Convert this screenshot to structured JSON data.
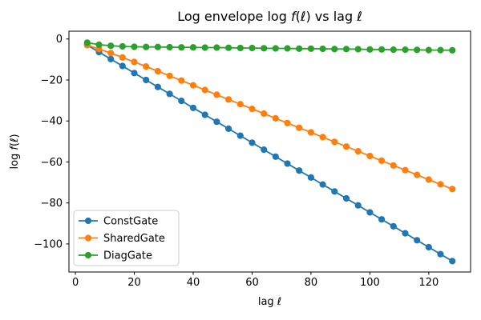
{
  "figure": {
    "background": "#ffffff"
  },
  "chart_data": {
    "type": "line",
    "title": "Log envelope log f(ℓ) vs lag ℓ",
    "title_parts": [
      {
        "text": "Log envelope log "
      },
      {
        "text": "f",
        "italic": true
      },
      {
        "text": "("
      },
      {
        "text": "ℓ",
        "italic": true
      },
      {
        "text": ") vs lag "
      },
      {
        "text": "ℓ",
        "italic": true
      }
    ],
    "xlabel": "lag ℓ",
    "xlabel_parts": [
      {
        "text": "lag "
      },
      {
        "text": "ℓ",
        "italic": true
      }
    ],
    "ylabel": "log f(ℓ)",
    "ylabel_parts": [
      {
        "text": "log "
      },
      {
        "text": "f",
        "italic": true
      },
      {
        "text": "("
      },
      {
        "text": "ℓ",
        "italic": true
      },
      {
        "text": ")"
      }
    ],
    "x": [
      4,
      8,
      12,
      16,
      20,
      24,
      28,
      32,
      36,
      40,
      44,
      48,
      52,
      56,
      60,
      64,
      68,
      72,
      76,
      80,
      84,
      88,
      92,
      96,
      100,
      104,
      108,
      112,
      116,
      120,
      124,
      128
    ],
    "series": [
      {
        "name": "ConstGate",
        "color": "#1f77b4",
        "values": [
          -3.0,
          -6.4,
          -9.8,
          -13.2,
          -16.6,
          -20.0,
          -23.4,
          -26.8,
          -30.2,
          -33.6,
          -37.0,
          -40.4,
          -43.8,
          -47.2,
          -50.6,
          -54.0,
          -57.4,
          -60.8,
          -64.2,
          -67.6,
          -71.0,
          -74.4,
          -77.8,
          -81.2,
          -84.6,
          -88.0,
          -91.4,
          -94.8,
          -98.2,
          -101.6,
          -105.0,
          -108.4
        ]
      },
      {
        "name": "SharedGate",
        "color": "#ff7f0e",
        "values": [
          -3.0,
          -4.9,
          -6.9,
          -9.0,
          -11.2,
          -13.4,
          -15.7,
          -18.0,
          -20.3,
          -22.6,
          -24.9,
          -27.2,
          -29.5,
          -31.8,
          -34.1,
          -36.4,
          -38.7,
          -41.0,
          -43.3,
          -45.6,
          -47.9,
          -50.2,
          -52.5,
          -54.8,
          -57.1,
          -59.4,
          -61.7,
          -64.0,
          -66.3,
          -68.6,
          -70.9,
          -73.2
        ]
      },
      {
        "name": "DiagGate",
        "color": "#2ca02c",
        "values": [
          -1.8,
          -2.8,
          -3.3,
          -3.6,
          -3.8,
          -3.9,
          -3.9,
          -4.0,
          -4.1,
          -4.1,
          -4.2,
          -4.2,
          -4.3,
          -4.4,
          -4.4,
          -4.5,
          -4.6,
          -4.6,
          -4.7,
          -4.7,
          -4.8,
          -4.9,
          -4.9,
          -5.0,
          -5.1,
          -5.1,
          -5.2,
          -5.2,
          -5.3,
          -5.4,
          -5.4,
          -5.5
        ]
      }
    ],
    "xticks": [
      0,
      20,
      40,
      60,
      80,
      100,
      120
    ],
    "xtick_labels": [
      "0",
      "20",
      "40",
      "60",
      "80",
      "100",
      "120"
    ],
    "yticks": [
      0,
      -20,
      -40,
      -60,
      -80,
      -100
    ],
    "ytick_labels": [
      "0",
      "−20",
      "−40",
      "−60",
      "−80",
      "−100"
    ],
    "xlim": [
      -2.2,
      134.2
    ],
    "ylim": [
      -113.7,
      3.8
    ],
    "grid": false,
    "marker": "circle",
    "legend": {
      "position": "lower left",
      "entries": [
        "ConstGate",
        "SharedGate",
        "DiagGate"
      ]
    },
    "colors": {
      "axis": "#000000",
      "text": "#000000",
      "legend_border": "#cccccc",
      "legend_background": "#ffffff"
    }
  }
}
